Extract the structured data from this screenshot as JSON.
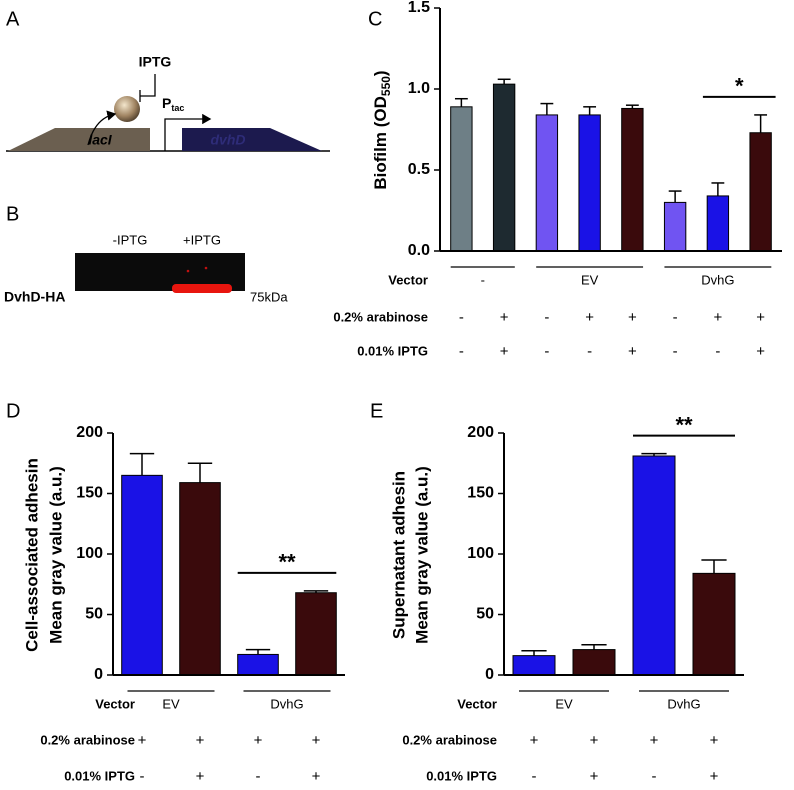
{
  "panel_labels": [
    "A",
    "B",
    "C",
    "D",
    "E"
  ],
  "diagram": {
    "inducer": "IPTG",
    "promoter": "P",
    "promoter_sub": "tac",
    "genes": [
      "lacI",
      "dvhD"
    ]
  },
  "blot": {
    "lanes": [
      "-IPTG",
      "+IPTG"
    ],
    "row_label": "DvhD-HA",
    "marker": "75kDa"
  },
  "chart_data": [
    {
      "type": "bar",
      "y_label": "Biofilm (OD",
      "y_label_sub": "550",
      "y_label_end": ")",
      "categories": [
        null,
        null,
        null,
        null,
        null,
        null,
        null,
        null
      ],
      "values": [
        0.89,
        1.03,
        0.84,
        0.84,
        0.88,
        0.3,
        0.34,
        0.73
      ],
      "errors": [
        0.05,
        0.03,
        0.07,
        0.05,
        0.02,
        0.07,
        0.08,
        0.11
      ],
      "colors": [
        "#6e7f86",
        "#1e2a30",
        "#7054f2",
        "#1a12e6",
        "#3a0a0c",
        "#7054f2",
        "#1a12e6",
        "#3a0a0c"
      ],
      "ylim": [
        0,
        1.5
      ],
      "yticks": [
        {
          "value": 0,
          "label": "0.0"
        },
        0.5,
        {
          "value": 1,
          "label": "1.0"
        },
        1.5
      ],
      "annotation": "*",
      "groups": {
        "label": "Vector",
        "names": [
          "-",
          "EV",
          "DvhG"
        ]
      },
      "conditions": [
        {
          "label": "0.2% arabinose",
          "values": [
            "-",
            "+",
            "-",
            "+",
            "+",
            "-",
            "+",
            "+"
          ]
        },
        {
          "label": "0.01% IPTG",
          "values": [
            "-",
            "+",
            "-",
            "-",
            "+",
            "-",
            "-",
            "+"
          ]
        }
      ]
    },
    {
      "type": "bar",
      "y_label": [
        "Cell-associated adhesin",
        "Mean gray value (a.u.)"
      ],
      "categories": [
        null,
        null,
        null,
        null
      ],
      "values": [
        165,
        159,
        17,
        68
      ],
      "errors": [
        18,
        16,
        4,
        1.5
      ],
      "colors": [
        "#1a12e6",
        "#3a0a0c",
        "#1a12e6",
        "#3a0a0c"
      ],
      "ylim": [
        0,
        200
      ],
      "yticks": [
        0,
        50,
        100,
        150,
        200
      ],
      "annotation": "**",
      "groups": {
        "label": "Vector",
        "names": [
          "EV",
          "DvhG"
        ]
      },
      "conditions": [
        {
          "label": "0.2% arabinose",
          "values": [
            "+",
            "+",
            "+",
            "+"
          ]
        },
        {
          "label": "0.01% IPTG",
          "values": [
            "-",
            "+",
            "-",
            "+"
          ]
        }
      ]
    },
    {
      "type": "bar",
      "y_label": [
        "Supernatant adhesin",
        "Mean gray value (a.u.)"
      ],
      "categories": [
        null,
        null,
        null,
        null
      ],
      "values": [
        16,
        21,
        181,
        84
      ],
      "errors": [
        4,
        4,
        2,
        11
      ],
      "colors": [
        "#1a12e6",
        "#3a0a0c",
        "#1a12e6",
        "#3a0a0c"
      ],
      "ylim": [
        0,
        200
      ],
      "yticks": [
        0,
        50,
        100,
        150,
        200
      ],
      "annotation": "**",
      "groups": {
        "label": "Vector",
        "names": [
          "EV",
          "DvhG"
        ]
      },
      "conditions": [
        {
          "label": "0.2% arabinose",
          "values": [
            "+",
            "+",
            "+",
            "+"
          ]
        },
        {
          "label": "0.01% IPTG",
          "values": [
            "-",
            "+",
            "-",
            "+"
          ]
        }
      ]
    }
  ]
}
